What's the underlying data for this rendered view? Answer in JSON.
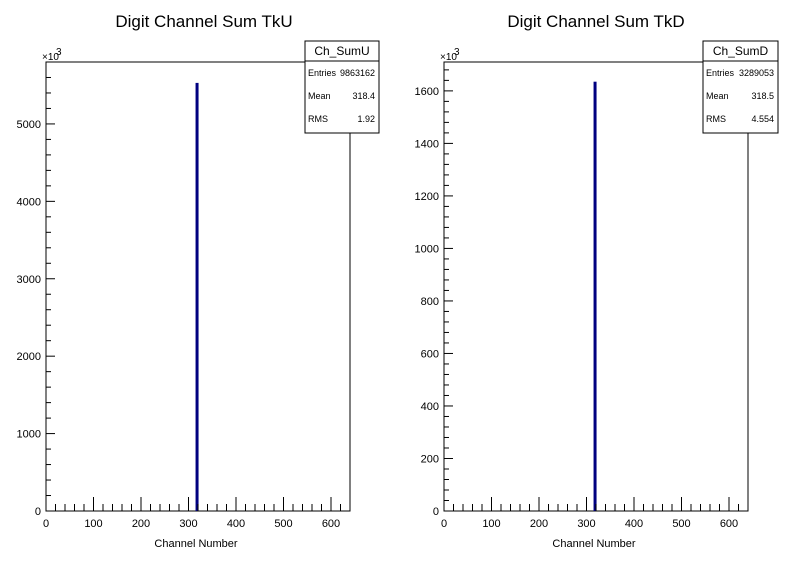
{
  "canvas": {
    "background": "#ffffff"
  },
  "chart_data": [
    {
      "type": "bar",
      "title": "Digit Channel Sum TkU",
      "xlabel": "Channel Number",
      "ylabel": "",
      "xlim": [
        0,
        640
      ],
      "ylim": [
        0,
        5800
      ],
      "y_exponent_label": "×10",
      "y_exponent_power": "3",
      "x_ticks": [
        0,
        100,
        200,
        300,
        400,
        500,
        600
      ],
      "x_tick_labels": [
        "0",
        "100",
        "200",
        "300",
        "400",
        "500",
        "600"
      ],
      "y_ticks": [
        0,
        1000,
        2000,
        3000,
        4000,
        5000
      ],
      "y_tick_labels": [
        "0",
        "1000",
        "2000",
        "3000",
        "4000",
        "5000"
      ],
      "bars": [
        {
          "x": 318,
          "value": 5530
        }
      ],
      "bar_color": "#000080",
      "stats_box": {
        "name": "Ch_SumU",
        "rows": [
          {
            "label": "Entries",
            "value": "9863162"
          },
          {
            "label": "Mean",
            "value": "318.4"
          },
          {
            "label": "RMS",
            "value": "1.92"
          }
        ]
      },
      "grid": false,
      "legend": "top-right"
    },
    {
      "type": "bar",
      "title": "Digit Channel Sum TkD",
      "xlabel": "Channel Number",
      "ylabel": "",
      "xlim": [
        0,
        640
      ],
      "ylim": [
        0,
        1710
      ],
      "y_exponent_label": "×10",
      "y_exponent_power": "3",
      "x_ticks": [
        0,
        100,
        200,
        300,
        400,
        500,
        600
      ],
      "x_tick_labels": [
        "0",
        "100",
        "200",
        "300",
        "400",
        "500",
        "600"
      ],
      "y_ticks": [
        0,
        200,
        400,
        600,
        800,
        1000,
        1200,
        1400,
        1600
      ],
      "y_tick_labels": [
        "0",
        "200",
        "400",
        "600",
        "800",
        "1000",
        "1200",
        "1400",
        "1600"
      ],
      "bars": [
        {
          "x": 318,
          "value": 1635
        }
      ],
      "bar_color": "#000080",
      "stats_box": {
        "name": "Ch_SumD",
        "rows": [
          {
            "label": "Entries",
            "value": "3289053"
          },
          {
            "label": "Mean",
            "value": "318.5"
          },
          {
            "label": "RMS",
            "value": "4.554"
          }
        ]
      },
      "grid": false,
      "legend": "top-right"
    }
  ]
}
